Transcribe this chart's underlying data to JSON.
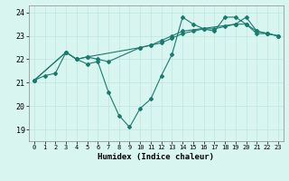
{
  "title": "",
  "xlabel": "Humidex (Indice chaleur)",
  "ylabel": "",
  "bg_color": "#d8f5f0",
  "grid_color": "#c0e8e2",
  "line_color": "#1a7a6e",
  "xlim": [
    -0.5,
    23.5
  ],
  "ylim": [
    18.5,
    24.3
  ],
  "yticks": [
    19,
    20,
    21,
    22,
    23,
    24
  ],
  "xticks": [
    0,
    1,
    2,
    3,
    4,
    5,
    6,
    7,
    8,
    9,
    10,
    11,
    12,
    13,
    14,
    15,
    16,
    17,
    18,
    19,
    20,
    21,
    22,
    23
  ],
  "lines": [
    {
      "x": [
        0,
        1,
        2,
        3,
        4,
        5,
        6,
        7,
        8,
        9,
        10,
        11,
        12,
        13,
        14,
        15,
        16,
        17,
        18,
        19,
        20,
        21,
        22,
        23
      ],
      "y": [
        21.1,
        21.3,
        21.4,
        22.3,
        22.0,
        21.8,
        21.9,
        20.6,
        19.6,
        19.1,
        19.9,
        20.3,
        21.3,
        22.2,
        23.8,
        23.5,
        23.3,
        23.2,
        23.8,
        23.8,
        23.5,
        23.1,
        23.1,
        23.0
      ]
    },
    {
      "x": [
        0,
        3,
        4,
        5,
        6,
        7,
        10,
        11,
        12,
        13,
        14,
        15,
        16,
        17,
        18,
        19,
        20,
        21,
        22,
        23
      ],
      "y": [
        21.1,
        22.3,
        22.0,
        22.1,
        22.0,
        21.9,
        22.5,
        22.6,
        22.7,
        22.9,
        23.1,
        23.2,
        23.3,
        23.3,
        23.4,
        23.5,
        23.5,
        23.2,
        23.1,
        23.0
      ]
    },
    {
      "x": [
        0,
        3,
        4,
        5,
        10,
        11,
        12,
        13,
        14,
        19,
        20,
        21,
        22,
        23
      ],
      "y": [
        21.1,
        22.3,
        22.0,
        22.1,
        22.5,
        22.6,
        22.8,
        23.0,
        23.2,
        23.5,
        23.8,
        23.2,
        23.1,
        23.0
      ]
    }
  ]
}
